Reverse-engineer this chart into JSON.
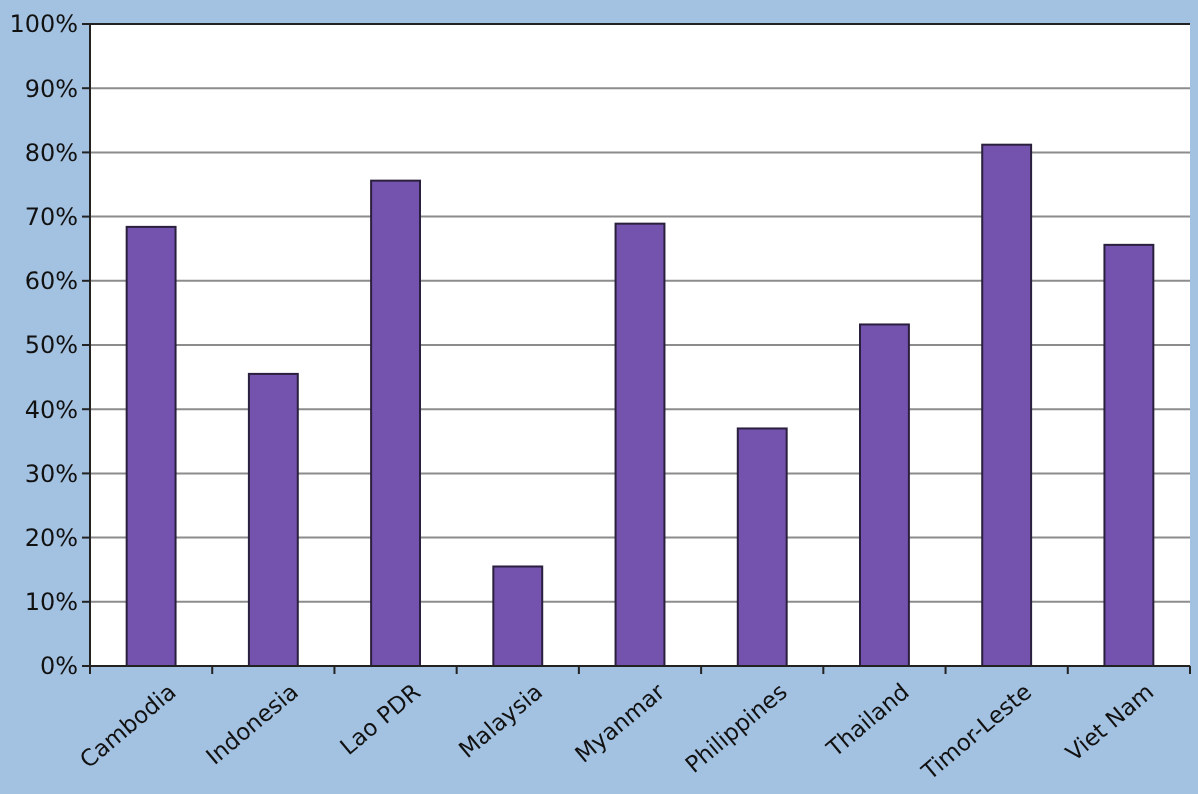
{
  "chart_data": {
    "type": "bar",
    "categories": [
      "Cambodia",
      "Indonesia",
      "Lao PDR",
      "Malaysia",
      "Myanmar",
      "Philippines",
      "Thailand",
      "Timor-Leste",
      "Viet Nam"
    ],
    "values": [
      68.4,
      45.5,
      75.6,
      15.5,
      68.9,
      37.0,
      53.2,
      81.2,
      65.6
    ],
    "color": "#7453ae",
    "ylim": [
      0,
      100
    ],
    "yticks": [
      {
        "value": 0,
        "label": "0%"
      },
      {
        "value": 10,
        "label": "10%"
      },
      {
        "value": 20,
        "label": "20%"
      },
      {
        "value": 30,
        "label": "30%"
      },
      {
        "value": 40,
        "label": "40%"
      },
      {
        "value": 50,
        "label": "50%"
      },
      {
        "value": 60,
        "label": "60%"
      },
      {
        "value": 70,
        "label": "70%"
      },
      {
        "value": 80,
        "label": "80%"
      },
      {
        "value": 90,
        "label": "90%"
      },
      {
        "value": 100,
        "label": "100%"
      }
    ],
    "grid": "y"
  }
}
